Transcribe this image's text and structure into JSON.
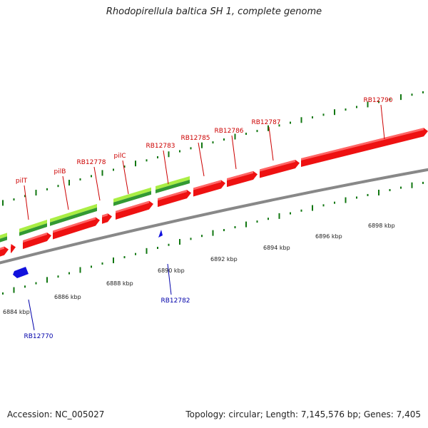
{
  "title": "Rhodopirellula baltica SH 1, complete genome",
  "footer": {
    "accession": "Accession: NC_005027",
    "stats": "Topology: circular; Length: 7,145,576 bp; Genes: 7,405"
  },
  "colors": {
    "forward_gene": "#ee1111",
    "reverse_gene": "#1111dd",
    "backbone": "#888888",
    "feature_light": "#aaee44",
    "feature_dark": "#339933",
    "tick": "#117711",
    "label_forward": "#cc0000",
    "label_reverse": "#0000aa"
  },
  "scale_labels": [
    "6884 kbp",
    "6886 kbp",
    "6888 kbp",
    "6890 kbp",
    "6892 kbp",
    "6894 kbp",
    "6896 kbp",
    "6898 kbp"
  ],
  "forward_gene_labels": [
    "pilT",
    "pilB",
    "RB12778",
    "pilC",
    "RB12783",
    "RB12785",
    "RB12786",
    "RB12787",
    "RB12790"
  ],
  "reverse_gene_labels": [
    "RB12770",
    "RB12782"
  ]
}
